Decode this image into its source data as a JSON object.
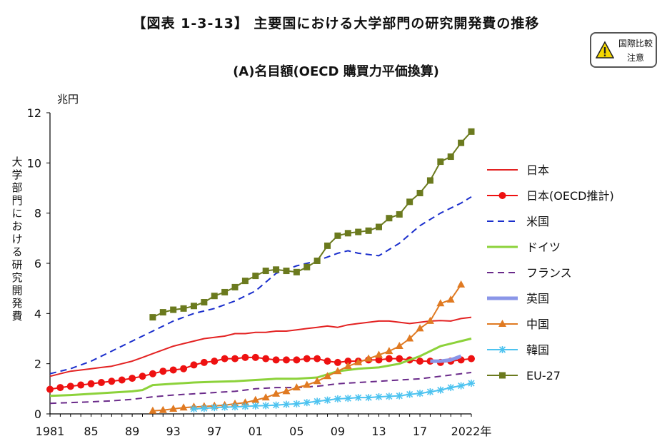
{
  "header": {
    "title": "【図表 1-3-13】 主要国における大学部門の研究開発費の推移",
    "subtitle": "(A)名目額(OECD 購買力平価換算)",
    "badge_text": "国際比較注意",
    "badge_icon": "warning-icon"
  },
  "chart_data": {
    "type": "line",
    "ylabel": "大学部門における研究開発費",
    "unit": "兆円",
    "ylim": [
      0,
      12
    ],
    "y_ticks": [
      "0",
      "2",
      "4",
      "6",
      "8",
      "10",
      "12"
    ],
    "xlim": [
      1981,
      2022
    ],
    "x_tick_years": [
      1981,
      1985,
      1989,
      1993,
      1997,
      2001,
      2005,
      2009,
      2013,
      2017,
      2022
    ],
    "x_tick_labels": [
      "1981",
      "85",
      "89",
      "93",
      "97",
      "01",
      "05",
      "09",
      "13",
      "17",
      "2022年"
    ],
    "grid": false,
    "legend_position": "right",
    "series": [
      {
        "name": "日本",
        "color": "#e32222",
        "style": "solid",
        "marker": "none",
        "x": [
          1981,
          1982,
          1983,
          1984,
          1985,
          1986,
          1987,
          1988,
          1989,
          1990,
          1991,
          1992,
          1993,
          1994,
          1995,
          1996,
          1997,
          1998,
          1999,
          2000,
          2001,
          2002,
          2003,
          2004,
          2005,
          2006,
          2007,
          2008,
          2009,
          2010,
          2011,
          2012,
          2013,
          2014,
          2015,
          2016,
          2017,
          2018,
          2019,
          2020,
          2021,
          2022
        ],
        "y": [
          1.5,
          1.6,
          1.7,
          1.75,
          1.8,
          1.85,
          1.9,
          2.0,
          2.1,
          2.25,
          2.4,
          2.55,
          2.7,
          2.8,
          2.9,
          3.0,
          3.05,
          3.1,
          3.2,
          3.2,
          3.25,
          3.25,
          3.3,
          3.3,
          3.35,
          3.4,
          3.45,
          3.5,
          3.45,
          3.55,
          3.6,
          3.65,
          3.7,
          3.7,
          3.65,
          3.6,
          3.65,
          3.7,
          3.72,
          3.7,
          3.8,
          3.85
        ]
      },
      {
        "name": "日本(OECD推計)",
        "color": "#ee1111",
        "style": "solid",
        "marker": "circle",
        "x": [
          1981,
          1982,
          1983,
          1984,
          1985,
          1986,
          1987,
          1988,
          1989,
          1990,
          1991,
          1992,
          1993,
          1994,
          1995,
          1996,
          1997,
          1998,
          1999,
          2000,
          2001,
          2002,
          2003,
          2004,
          2005,
          2006,
          2007,
          2008,
          2009,
          2010,
          2011,
          2012,
          2013,
          2014,
          2015,
          2016,
          2017,
          2018,
          2019,
          2020,
          2021,
          2022
        ],
        "y": [
          0.98,
          1.05,
          1.1,
          1.15,
          1.2,
          1.25,
          1.3,
          1.35,
          1.42,
          1.5,
          1.6,
          1.7,
          1.75,
          1.8,
          1.95,
          2.05,
          2.1,
          2.2,
          2.2,
          2.25,
          2.25,
          2.2,
          2.15,
          2.15,
          2.15,
          2.2,
          2.2,
          2.1,
          2.05,
          2.1,
          2.1,
          2.15,
          2.15,
          2.2,
          2.2,
          2.15,
          2.1,
          2.1,
          2.05,
          2.1,
          2.15,
          2.2
        ]
      },
      {
        "name": "米国",
        "color": "#1a2ecc",
        "style": "dashed",
        "marker": "none",
        "x": [
          1981,
          1983,
          1985,
          1987,
          1989,
          1991,
          1993,
          1995,
          1997,
          1999,
          2001,
          2003,
          2005,
          2007,
          2009,
          2010,
          2011,
          2013,
          2015,
          2017,
          2019,
          2021,
          2022
        ],
        "y": [
          1.6,
          1.8,
          2.1,
          2.5,
          2.9,
          3.3,
          3.7,
          4.0,
          4.2,
          4.5,
          4.9,
          5.6,
          5.9,
          6.1,
          6.4,
          6.5,
          6.4,
          6.3,
          6.8,
          7.5,
          8.0,
          8.4,
          8.65
        ]
      },
      {
        "name": "ドイツ",
        "color": "#8cd23a",
        "style": "solid",
        "marker": "none",
        "x": [
          1981,
          1983,
          1985,
          1987,
          1989,
          1990,
          1991,
          1993,
          1995,
          1997,
          1999,
          2001,
          2003,
          2005,
          2007,
          2009,
          2011,
          2013,
          2015,
          2017,
          2019,
          2021,
          2022
        ],
        "y": [
          0.72,
          0.75,
          0.8,
          0.85,
          0.9,
          0.95,
          1.15,
          1.2,
          1.25,
          1.28,
          1.3,
          1.35,
          1.4,
          1.4,
          1.45,
          1.7,
          1.8,
          1.85,
          2.0,
          2.3,
          2.7,
          2.9,
          3.0
        ]
      },
      {
        "name": "フランス",
        "color": "#6a2a8a",
        "style": "dashed",
        "marker": "none",
        "x": [
          1981,
          1983,
          1985,
          1987,
          1989,
          1991,
          1993,
          1995,
          1997,
          1999,
          2001,
          2003,
          2005,
          2007,
          2009,
          2011,
          2013,
          2015,
          2017,
          2019,
          2021,
          2022
        ],
        "y": [
          0.42,
          0.45,
          0.48,
          0.52,
          0.58,
          0.68,
          0.75,
          0.8,
          0.85,
          0.9,
          1.0,
          1.05,
          1.05,
          1.1,
          1.2,
          1.25,
          1.3,
          1.35,
          1.4,
          1.5,
          1.6,
          1.65
        ]
      },
      {
        "name": "英国",
        "color": "#8a96e8",
        "style": "solid",
        "marker": "none",
        "x": [
          2018,
          2019,
          2020,
          2021
        ],
        "y": [
          2.1,
          2.1,
          2.15,
          2.3
        ]
      },
      {
        "name": "中国",
        "color": "#e07a22",
        "style": "solid",
        "marker": "triangle",
        "x": [
          1991,
          1992,
          1993,
          1994,
          1995,
          1996,
          1997,
          1998,
          1999,
          2000,
          2001,
          2002,
          2003,
          2004,
          2005,
          2006,
          2007,
          2008,
          2009,
          2010,
          2011,
          2012,
          2013,
          2014,
          2015,
          2016,
          2017,
          2018,
          2019,
          2020,
          2021
        ],
        "y": [
          0.12,
          0.15,
          0.2,
          0.25,
          0.28,
          0.3,
          0.32,
          0.35,
          0.4,
          0.45,
          0.55,
          0.65,
          0.8,
          0.9,
          1.05,
          1.15,
          1.3,
          1.5,
          1.7,
          1.9,
          2.05,
          2.2,
          2.35,
          2.5,
          2.7,
          3.0,
          3.4,
          3.7,
          4.4,
          4.55,
          5.15
        ]
      },
      {
        "name": "韓国",
        "color": "#4dc3f0",
        "style": "solid",
        "marker": "star",
        "x": [
          1995,
          1996,
          1997,
          1998,
          1999,
          2000,
          2001,
          2002,
          2003,
          2004,
          2005,
          2006,
          2007,
          2008,
          2009,
          2010,
          2011,
          2012,
          2013,
          2014,
          2015,
          2016,
          2017,
          2018,
          2019,
          2020,
          2021,
          2022
        ],
        "y": [
          0.2,
          0.22,
          0.25,
          0.27,
          0.28,
          0.3,
          0.32,
          0.33,
          0.35,
          0.38,
          0.4,
          0.45,
          0.5,
          0.55,
          0.6,
          0.62,
          0.65,
          0.65,
          0.68,
          0.7,
          0.72,
          0.78,
          0.82,
          0.88,
          0.95,
          1.05,
          1.12,
          1.22
        ]
      },
      {
        "name": "EU-27",
        "color": "#6b7a1e",
        "style": "solid",
        "marker": "square",
        "x": [
          1991,
          1992,
          1993,
          1994,
          1995,
          1996,
          1997,
          1998,
          1999,
          2000,
          2001,
          2002,
          2003,
          2004,
          2005,
          2006,
          2007,
          2008,
          2009,
          2010,
          2011,
          2012,
          2013,
          2014,
          2015,
          2016,
          2017,
          2018,
          2019,
          2020,
          2021,
          2022
        ],
        "y": [
          3.85,
          4.05,
          4.15,
          4.2,
          4.3,
          4.45,
          4.7,
          4.85,
          5.05,
          5.3,
          5.5,
          5.7,
          5.75,
          5.7,
          5.65,
          5.85,
          6.1,
          6.7,
          7.1,
          7.2,
          7.25,
          7.3,
          7.45,
          7.8,
          7.95,
          8.45,
          8.8,
          9.3,
          10.05,
          10.25,
          10.8,
          11.25
        ]
      }
    ]
  }
}
